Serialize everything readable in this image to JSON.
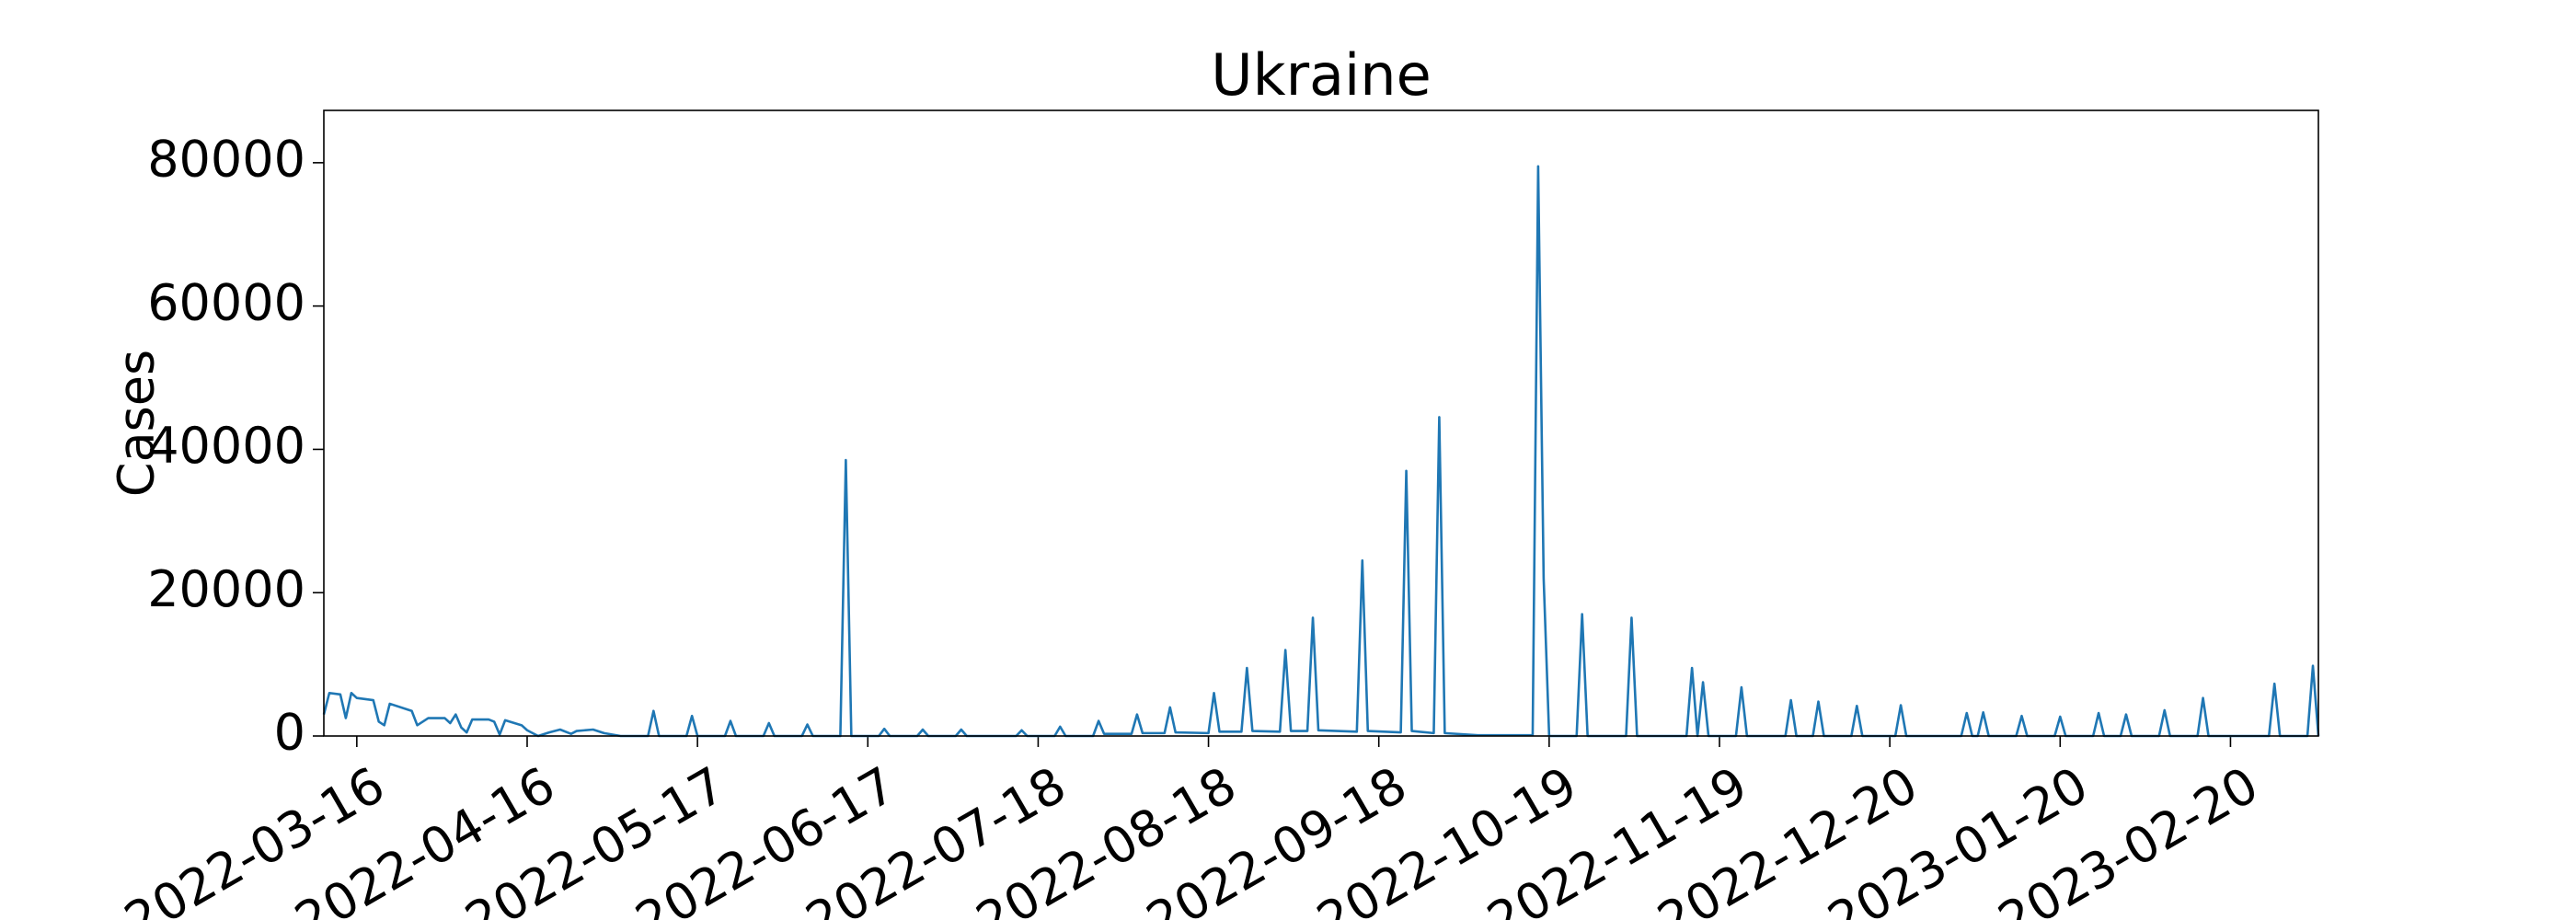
{
  "chart_data": {
    "type": "line",
    "title": "Ukraine",
    "y_label": "Cases",
    "x": [
      "2022-03-10",
      "2022-03-11",
      "2022-03-13",
      "2022-03-14",
      "2022-03-15",
      "2022-03-16",
      "2022-03-19",
      "2022-03-20",
      "2022-03-21",
      "2022-03-22",
      "2022-03-26",
      "2022-03-27",
      "2022-03-29",
      "2022-04-01",
      "2022-04-02",
      "2022-04-03",
      "2022-04-04",
      "2022-04-05",
      "2022-04-06",
      "2022-04-09",
      "2022-04-10",
      "2022-04-11",
      "2022-04-12",
      "2022-04-15",
      "2022-04-16",
      "2022-04-18",
      "2022-04-20",
      "2022-04-22",
      "2022-04-24",
      "2022-04-25",
      "2022-04-28",
      "2022-04-30",
      "2022-05-03",
      "2022-05-08",
      "2022-05-09",
      "2022-05-10",
      "2022-05-15",
      "2022-05-16",
      "2022-05-17",
      "2022-05-22",
      "2022-05-23",
      "2022-05-24",
      "2022-05-29",
      "2022-05-30",
      "2022-05-31",
      "2022-06-05",
      "2022-06-06",
      "2022-06-07",
      "2022-06-12",
      "2022-06-13",
      "2022-06-14",
      "2022-06-19",
      "2022-06-20",
      "2022-06-21",
      "2022-06-26",
      "2022-06-27",
      "2022-06-28",
      "2022-07-03",
      "2022-07-04",
      "2022-07-05",
      "2022-07-14",
      "2022-07-15",
      "2022-07-16",
      "2022-07-21",
      "2022-07-22",
      "2022-07-23",
      "2022-07-28",
      "2022-07-29",
      "2022-07-30",
      "2022-08-04",
      "2022-08-05",
      "2022-08-06",
      "2022-08-10",
      "2022-08-11",
      "2022-08-12",
      "2022-08-18",
      "2022-08-19",
      "2022-08-20",
      "2022-08-24",
      "2022-08-25",
      "2022-08-26",
      "2022-08-31",
      "2022-09-01",
      "2022-09-02",
      "2022-09-05",
      "2022-09-06",
      "2022-09-07",
      "2022-09-14",
      "2022-09-15",
      "2022-09-16",
      "2022-09-22",
      "2022-09-23",
      "2022-09-24",
      "2022-09-28",
      "2022-09-29",
      "2022-09-30",
      "2022-10-06",
      "2022-10-16",
      "2022-10-17",
      "2022-10-18",
      "2022-10-19",
      "2022-10-24",
      "2022-10-25",
      "2022-10-26",
      "2022-11-02",
      "2022-11-03",
      "2022-11-04",
      "2022-11-13",
      "2022-11-14",
      "2022-11-15",
      "2022-11-16",
      "2022-11-17",
      "2022-11-22",
      "2022-11-23",
      "2022-11-24",
      "2022-12-01",
      "2022-12-02",
      "2022-12-03",
      "2022-12-06",
      "2022-12-07",
      "2022-12-08",
      "2022-12-13",
      "2022-12-14",
      "2022-12-15",
      "2022-12-21",
      "2022-12-22",
      "2022-12-23",
      "2023-01-02",
      "2023-01-03",
      "2023-01-04",
      "2023-01-05",
      "2023-01-06",
      "2023-01-07",
      "2023-01-12",
      "2023-01-13",
      "2023-01-14",
      "2023-01-19",
      "2023-01-20",
      "2023-01-21",
      "2023-01-26",
      "2023-01-27",
      "2023-01-28",
      "2023-01-31",
      "2023-02-01",
      "2023-02-02",
      "2023-02-07",
      "2023-02-08",
      "2023-02-09",
      "2023-02-14",
      "2023-02-15",
      "2023-02-16",
      "2023-02-27",
      "2023-02-28",
      "2023-03-01",
      "2023-03-06",
      "2023-03-07",
      "2023-03-08"
    ],
    "series": [
      {
        "name": "Cases",
        "color": "#1f77b4",
        "values": [
          3000,
          6000,
          5800,
          2500,
          6000,
          5300,
          5000,
          2000,
          1500,
          4500,
          3500,
          1500,
          2500,
          2500,
          1800,
          3000,
          1200,
          500,
          2300,
          2300,
          2000,
          200,
          2200,
          1500,
          800,
          0,
          500,
          900,
          300,
          700,
          900,
          400,
          0,
          0,
          3500,
          0,
          0,
          2800,
          0,
          0,
          2100,
          0,
          0,
          1800,
          0,
          0,
          1600,
          0,
          0,
          38500,
          0,
          0,
          1000,
          0,
          0,
          900,
          0,
          0,
          900,
          0,
          0,
          800,
          0,
          0,
          1300,
          0,
          0,
          2100,
          300,
          300,
          3000,
          400,
          400,
          4000,
          500,
          400,
          6000,
          600,
          600,
          9500,
          700,
          600,
          12000,
          700,
          700,
          16500,
          800,
          600,
          24500,
          700,
          500,
          37000,
          700,
          400,
          44500,
          400,
          100,
          100,
          79500,
          22000,
          0,
          0,
          17000,
          0,
          0,
          16500,
          0,
          0,
          9500,
          0,
          7500,
          0,
          0,
          6800,
          0,
          0,
          5000,
          0,
          0,
          4800,
          0,
          0,
          4200,
          0,
          0,
          4300,
          0,
          0,
          3200,
          0,
          0,
          3300,
          0,
          0,
          2800,
          0,
          0,
          2700,
          0,
          0,
          3200,
          0,
          0,
          3000,
          0,
          0,
          3600,
          0,
          0,
          5300,
          0,
          0,
          7300,
          0,
          0,
          9800,
          0
        ]
      }
    ],
    "xlim": [
      "2022-03-10",
      "2023-03-08"
    ],
    "xticks": [
      "2022-03-16",
      "2022-04-16",
      "2022-05-17",
      "2022-06-17",
      "2022-07-18",
      "2022-08-18",
      "2022-09-18",
      "2022-10-19",
      "2022-11-19",
      "2022-12-20",
      "2023-01-20",
      "2023-02-20"
    ],
    "ylim": [
      0,
      87300
    ],
    "yticks": [
      0,
      20000,
      40000,
      60000,
      80000
    ],
    "grid": false
  }
}
